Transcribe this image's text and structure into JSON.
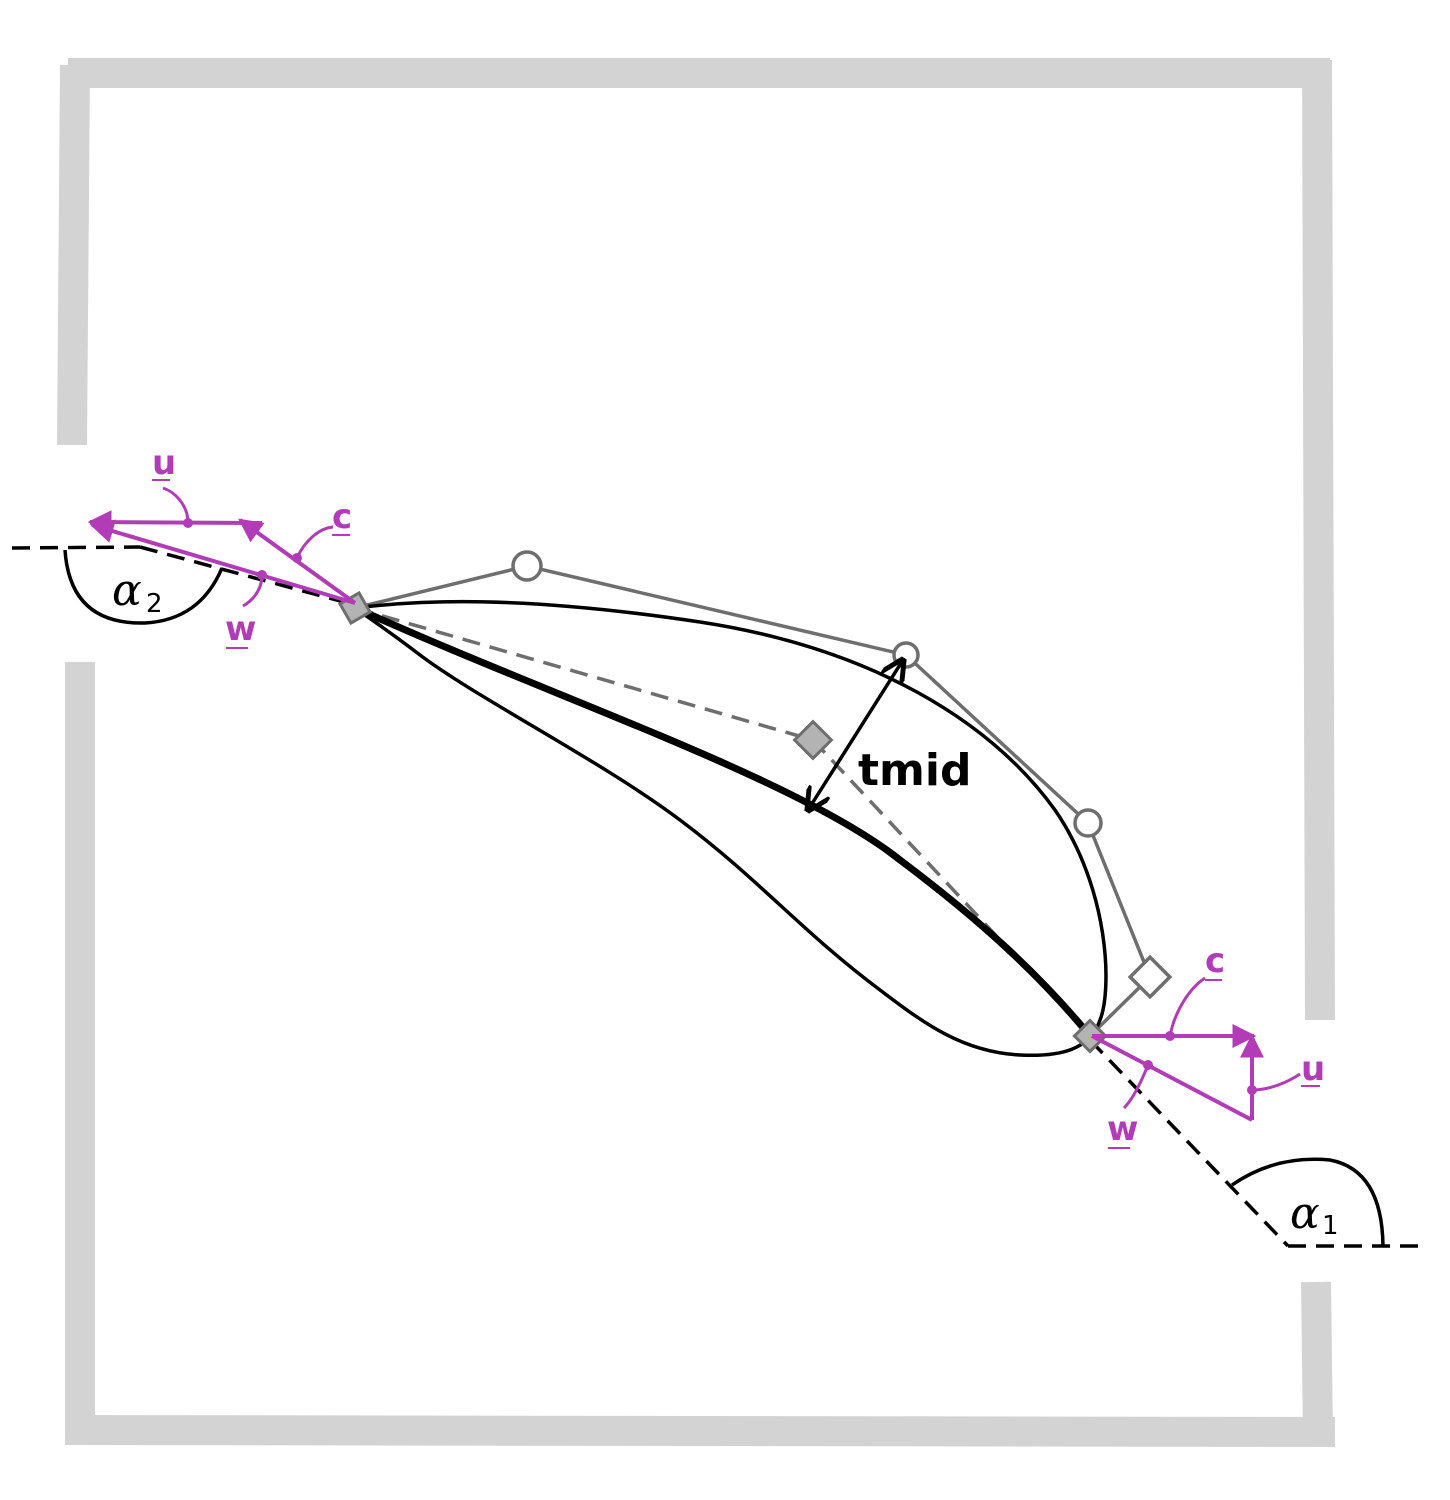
{
  "colors": {
    "frame": "#d3d3d3",
    "outline": "#000000",
    "control": "#6e6e6e",
    "control_fill": "#b3b3b3",
    "vector": "#b23cb8"
  },
  "labels": {
    "thickness": "tmid",
    "alpha_inlet": "α",
    "alpha_inlet_sub": "1",
    "alpha_outlet": "α",
    "alpha_outlet_sub": "2",
    "velocity_blade_outlet": "u",
    "velocity_absolute_outlet": "c",
    "velocity_relative_outlet": "w",
    "velocity_blade_inlet": "u",
    "velocity_absolute_inlet": "c",
    "velocity_relative_inlet": "w"
  }
}
